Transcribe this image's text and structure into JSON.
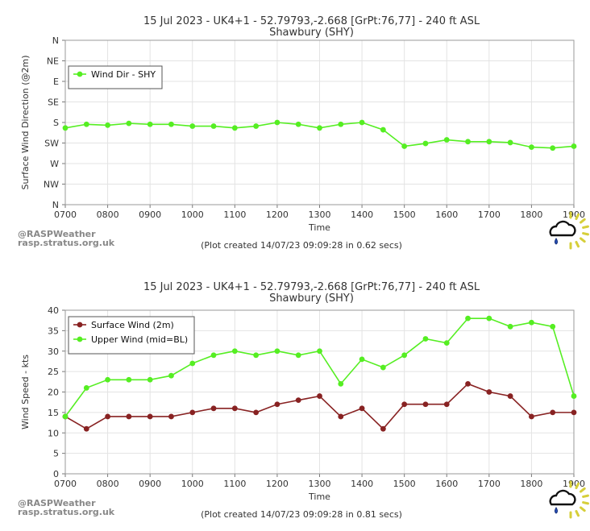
{
  "chart_data": [
    {
      "type": "line",
      "title": "15 Jul 2023 - UK4+1 - 52.79793,-2.668 [GrPt:76,77]  - 240 ft ASL",
      "subtitle": "Shawbury (SHY)",
      "xlabel": "Time",
      "ylabel": "Surface Wind Direction (@2m)",
      "x_tick_labels": [
        "0700",
        "0800",
        "0900",
        "1000",
        "1100",
        "1200",
        "1300",
        "1400",
        "1500",
        "1600",
        "1700",
        "1800",
        "1900"
      ],
      "y_tick_labels": [
        "N",
        "NW",
        "W",
        "SW",
        "S",
        "SE",
        "E",
        "NE",
        "N"
      ],
      "ylim": [
        0,
        360
      ],
      "y_reversed": true,
      "grid": true,
      "legend_position": "top-left",
      "x": [
        700,
        730,
        800,
        830,
        900,
        930,
        1000,
        1030,
        1100,
        1130,
        1200,
        1230,
        1300,
        1330,
        1400,
        1430,
        1500,
        1530,
        1600,
        1630,
        1700,
        1730,
        1800,
        1830,
        1900
      ],
      "series": [
        {
          "name": "Wind Dir - SHY",
          "color": "#55ee22",
          "values": [
            192,
            184,
            186,
            182,
            184,
            184,
            188,
            188,
            192,
            188,
            180,
            184,
            192,
            184,
            180,
            196,
            232,
            226,
            218,
            222,
            222,
            224,
            234,
            236,
            232
          ]
        }
      ],
      "credit": [
        "@RASPWeather",
        "rasp.stratus.org.uk"
      ],
      "footer": "(Plot created 14/07/23 09:09:28 in 0.62 secs)"
    },
    {
      "type": "line",
      "title": "15 Jul 2023 - UK4+1 - 52.79793,-2.668 [GrPt:76,77]  - 240 ft ASL",
      "subtitle": "Shawbury (SHY)",
      "xlabel": "Time",
      "ylabel": "Wind Speed - kts",
      "x_tick_labels": [
        "0700",
        "0800",
        "0900",
        "1000",
        "1100",
        "1200",
        "1300",
        "1400",
        "1500",
        "1600",
        "1700",
        "1800",
        "1900"
      ],
      "y_tick_labels": [
        "0",
        "5",
        "10",
        "15",
        "20",
        "25",
        "30",
        "35",
        "40"
      ],
      "ylim": [
        0,
        40
      ],
      "grid": true,
      "legend_position": "top-left",
      "x": [
        700,
        730,
        800,
        830,
        900,
        930,
        1000,
        1030,
        1100,
        1130,
        1200,
        1230,
        1300,
        1330,
        1400,
        1430,
        1500,
        1530,
        1600,
        1630,
        1700,
        1730,
        1800,
        1830,
        1900
      ],
      "series": [
        {
          "name": "Surface Wind (2m)",
          "color": "#882222",
          "values": [
            14,
            11,
            14,
            14,
            14,
            14,
            15,
            16,
            16,
            15,
            17,
            18,
            19,
            14,
            16,
            11,
            17,
            17,
            17,
            22,
            20,
            19,
            14,
            15,
            15
          ]
        },
        {
          "name": "Upper Wind (mid=BL)",
          "color": "#55ee22",
          "values": [
            14,
            21,
            23,
            23,
            23,
            24,
            27,
            29,
            30,
            29,
            30,
            29,
            30,
            22,
            28,
            26,
            29,
            33,
            32,
            38,
            38,
            36,
            37,
            36,
            19
          ]
        }
      ],
      "credit": [
        "@RASPWeather",
        "rasp.stratus.org.uk"
      ],
      "footer": "(Plot created 14/07/23 09:09:28 in 0.81 secs)"
    }
  ]
}
